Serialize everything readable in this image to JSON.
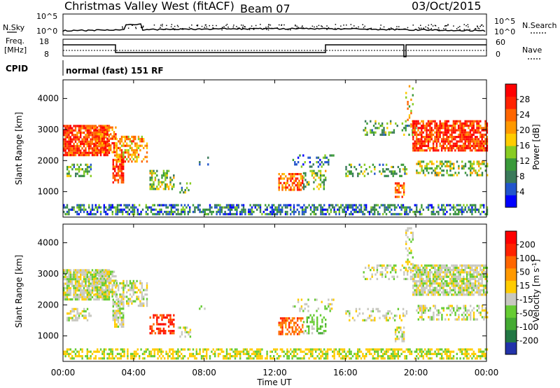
{
  "header": {
    "title": "Christmas Valley West (fitACF)",
    "beam": "Beam 07",
    "date": "03/Oct/2015"
  },
  "panels": {
    "nsky": {
      "label": "N.Sky",
      "ticks_left": [
        "10^5",
        "10^0"
      ],
      "ticks_right": [
        "10^5",
        "10^0"
      ],
      "right_label": "N.Search"
    },
    "freq": {
      "label_line1": "Freq.",
      "label_line2": "[MHz]",
      "ticks_left": [
        "18",
        "8"
      ],
      "ticks_right": [
        "60",
        "0"
      ],
      "right_label": "Nave"
    },
    "cpid": {
      "label": "CPID",
      "mode": "normal (fast) 151 RF"
    }
  },
  "colors": {
    "power_scale": [
      "#0000ff",
      "#2255cc",
      "#3a7a5a",
      "#3a9a3a",
      "#88cc22",
      "#ffcc00",
      "#ff9900",
      "#ff6600",
      "#ff2200",
      "#ff0000"
    ],
    "velocity_scale": [
      "#2233aa",
      "#227744",
      "#44aa33",
      "#66cc33",
      "#c8c8c0",
      "#ffcc00",
      "#ff9900",
      "#ff6600",
      "#ff2200",
      "#ff0000"
    ]
  },
  "chart_data": [
    {
      "type": "heatmap",
      "title": "",
      "xlabel": "",
      "ylabel": "Slant Range [km]",
      "x_ticks": [
        "00:00",
        "04:00",
        "08:00",
        "12:00",
        "16:00",
        "20:00",
        "00:00"
      ],
      "y_ticks": [
        "1000",
        "2000",
        "3000",
        "4000"
      ],
      "ylim": [
        180,
        4600
      ],
      "colorbar": {
        "label": "Power [dB]",
        "ticks": [
          "28",
          "24",
          "20",
          "16",
          "12",
          "8",
          "4"
        ],
        "range": [
          0,
          30
        ]
      }
    },
    {
      "type": "heatmap",
      "title": "",
      "xlabel": "Time UT",
      "ylabel": "Slant Range [km]",
      "x_ticks": [
        "00:00",
        "04:00",
        "08:00",
        "12:00",
        "16:00",
        "20:00",
        "00:00"
      ],
      "y_ticks": [
        "1000",
        "2000",
        "3000",
        "4000"
      ],
      "ylim": [
        180,
        4600
      ],
      "colorbar": {
        "label": "Velocity [m s^-1]",
        "ticks": [
          "200",
          "100",
          "50",
          "15",
          "-15",
          "-50",
          "-100",
          "-200"
        ]
      }
    }
  ]
}
